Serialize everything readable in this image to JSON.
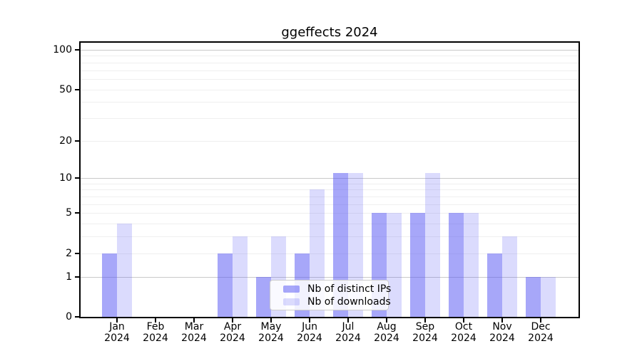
{
  "chart_data": {
    "type": "bar",
    "title": "ggeffects 2024",
    "year_label": "2024",
    "categories": [
      "Jan",
      "Feb",
      "Mar",
      "Apr",
      "May",
      "Jun",
      "Jul",
      "Aug",
      "Sep",
      "Oct",
      "Nov",
      "Dec"
    ],
    "series": [
      {
        "name": "Nb of distinct IPs",
        "key": "distinct-ips",
        "color": "rgba(86,86,244,0.52)",
        "values": [
          2,
          0,
          0,
          2,
          1,
          2,
          11,
          5,
          5,
          5,
          2,
          1
        ]
      },
      {
        "name": "Nb of downloads",
        "key": "downloads",
        "color": "rgba(86,86,244,0.21)",
        "values": [
          4,
          0,
          0,
          3,
          3,
          8,
          11,
          5,
          11,
          5,
          3,
          1
        ]
      }
    ],
    "xlabel": "",
    "ylabel": "",
    "y_scale": "log10(1+x)",
    "y_ticks": [
      0,
      1,
      2,
      5,
      10,
      20,
      50,
      100
    ],
    "ylim": [
      0,
      113
    ],
    "grid": "on",
    "y_major_gridlines": [
      1,
      10,
      100
    ],
    "y_minor_gridlines": [
      2,
      3,
      4,
      5,
      6,
      7,
      8,
      9,
      20,
      30,
      40,
      50,
      60,
      70,
      80,
      90
    ],
    "legend_position": "lower center",
    "colors": {
      "major_gridline": "#c9c9c9",
      "minor_gridline": "#efefef",
      "axis": "#000000",
      "text": "#000000",
      "background": "#ffffff"
    }
  }
}
